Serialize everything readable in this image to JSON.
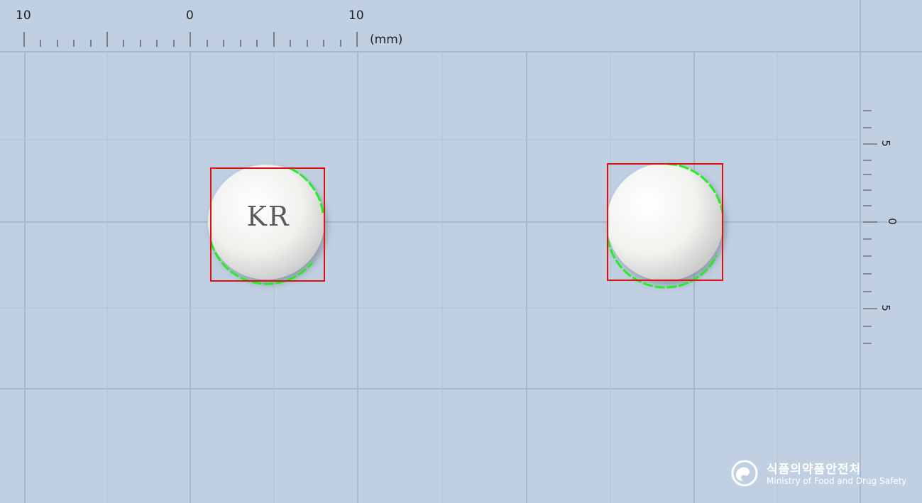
{
  "top_ruler": {
    "labels": [
      "10",
      "0",
      "10"
    ],
    "unit": "(mm)"
  },
  "side_ruler": {
    "labels": [
      "5",
      "0",
      "5"
    ]
  },
  "pills": [
    {
      "side": "front",
      "imprint": "KR",
      "color": "#f1f1ee"
    },
    {
      "side": "back",
      "imprint": "",
      "color": "#f1f1ee"
    }
  ],
  "colors": {
    "background": "#c0cfe1",
    "grid": "#a9b8ca",
    "bounding_box": "#e01010",
    "contour": "#22ee22"
  },
  "watermark": {
    "korean": "식품의약품안전처",
    "english": "Ministry of Food and Drug Safety",
    "emblem": "mfds-emblem-icon"
  }
}
